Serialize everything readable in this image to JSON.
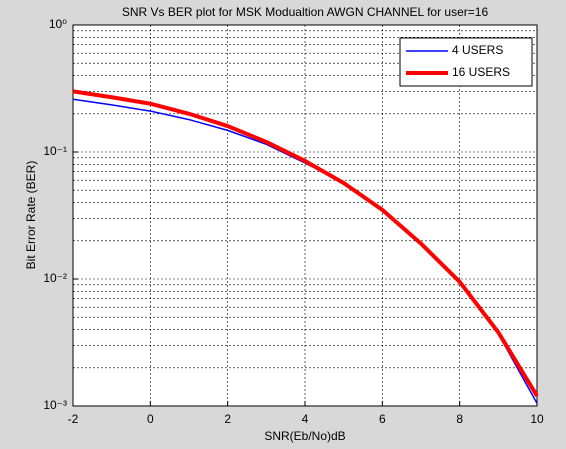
{
  "chart_data": {
    "type": "line",
    "title": "SNR Vs BER plot for MSK Modualtion AWGN CHANNEL for user=16",
    "xlabel": "SNR(Eb/No)dB",
    "ylabel": "Bit Error Rate (BER)",
    "x": [
      -2,
      -1,
      0,
      1,
      2,
      3,
      4,
      5,
      6,
      7,
      8,
      9,
      10
    ],
    "series": [
      {
        "name": "4 USERS",
        "color": "#0000ff",
        "values": [
          0.26,
          0.235,
          0.21,
          0.18,
          0.148,
          0.115,
          0.082,
          0.057,
          0.035,
          0.019,
          0.0095,
          0.0037,
          0.00105
        ]
      },
      {
        "name": "16 USERS",
        "color": "#ff0000",
        "values": [
          0.3,
          0.27,
          0.24,
          0.2,
          0.16,
          0.12,
          0.085,
          0.057,
          0.035,
          0.019,
          0.0095,
          0.0038,
          0.0012
        ]
      }
    ],
    "xlim": [
      -2,
      10
    ],
    "xticks": [
      -2,
      0,
      2,
      4,
      6,
      8,
      10
    ],
    "ylim": [
      0.001,
      1
    ],
    "ylog": true,
    "yticks": [
      {
        "value": 0.001,
        "label": "10⁻³"
      },
      {
        "value": 0.01,
        "label": "10⁻²"
      },
      {
        "value": 0.1,
        "label": "10⁻¹"
      },
      {
        "value": 1,
        "label": "10⁰"
      }
    ],
    "grid": true,
    "legend": "upper right"
  }
}
